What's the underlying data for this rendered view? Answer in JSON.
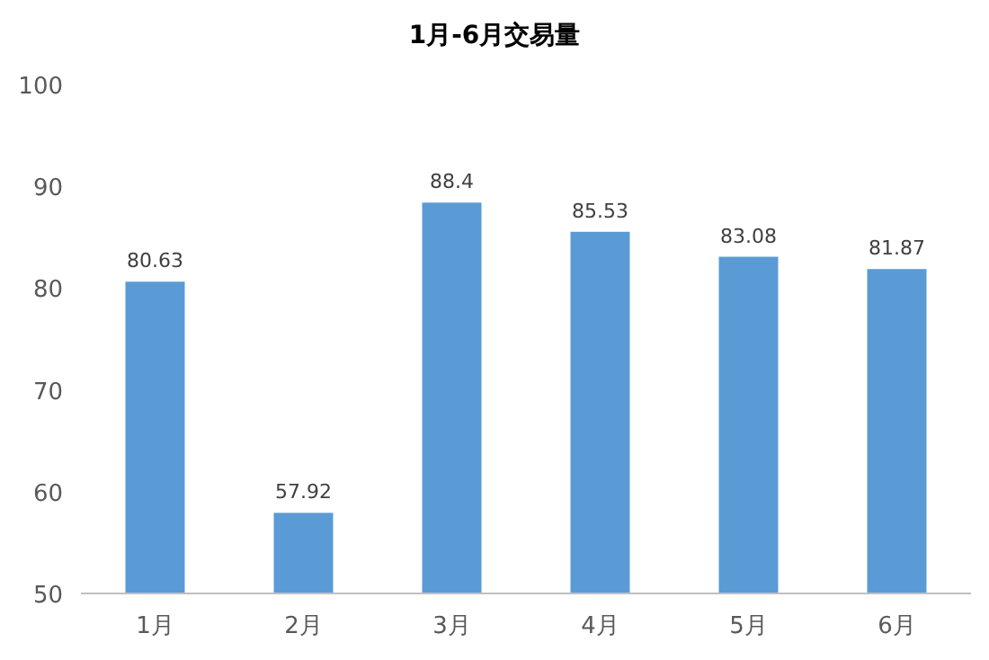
{
  "chart_data": {
    "type": "bar",
    "title": "1月-6月交易量",
    "categories": [
      "1月",
      "2月",
      "3月",
      "4月",
      "5月",
      "6月"
    ],
    "values": [
      80.63,
      57.92,
      88.4,
      85.53,
      83.08,
      81.87
    ],
    "color": "#5b9bd5",
    "ylim": [
      50,
      100
    ],
    "yticks": [
      50,
      60,
      70,
      80,
      90,
      100
    ],
    "data_labels": true
  }
}
